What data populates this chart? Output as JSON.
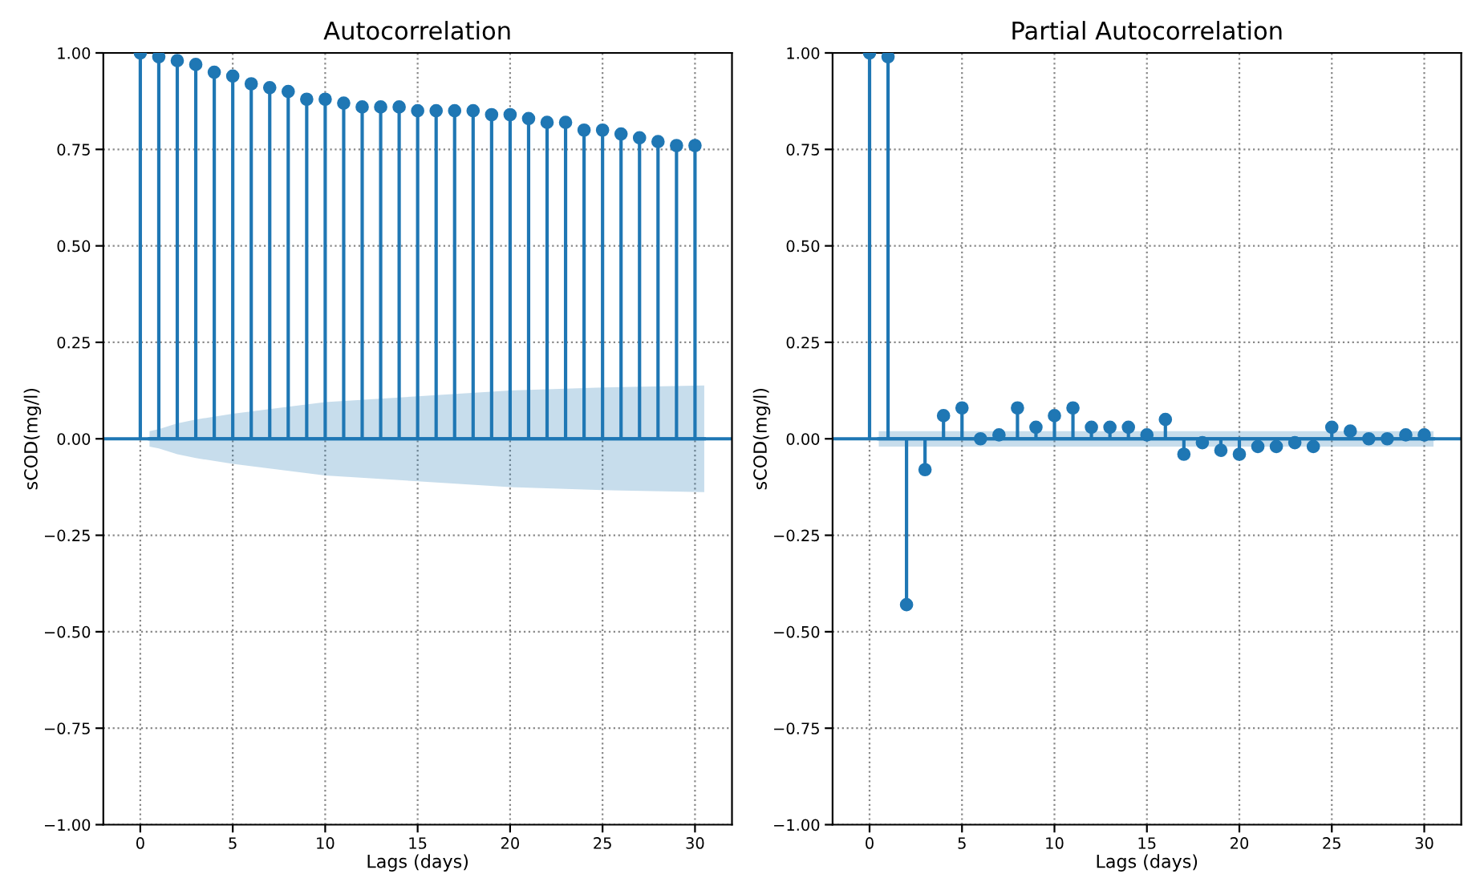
{
  "chart_data": [
    {
      "type": "lollipop",
      "title": "Autocorrelation",
      "xlabel": "Lags (days)",
      "ylabel": "sCOD(mg/l)",
      "xlim": [
        -2,
        32
      ],
      "xticks": [
        0,
        5,
        10,
        15,
        20,
        25,
        30
      ],
      "ylim": [
        -1,
        1
      ],
      "yticks": [
        {
          "value": -1,
          "label": "−1.00"
        },
        {
          "value": -0.75,
          "label": "−0.75"
        },
        {
          "value": -0.5,
          "label": "−0.50"
        },
        {
          "value": -0.25,
          "label": "−0.25"
        },
        {
          "value": 0,
          "label": "0.00"
        },
        {
          "value": 0.25,
          "label": "0.25"
        },
        {
          "value": 0.5,
          "label": "0.50"
        },
        {
          "value": 0.75,
          "label": "0.75"
        },
        {
          "value": 1,
          "label": "1.00"
        }
      ],
      "grid": true,
      "ref_lines": [
        {
          "axis": "y",
          "value": 0,
          "color": "#1f77b4"
        }
      ],
      "series": [
        {
          "color": "#1f77b4",
          "marker": "circle",
          "x": [
            0,
            1,
            2,
            3,
            4,
            5,
            6,
            7,
            8,
            9,
            10,
            11,
            12,
            13,
            14,
            15,
            16,
            17,
            18,
            19,
            20,
            21,
            22,
            23,
            24,
            25,
            26,
            27,
            28,
            29,
            30
          ],
          "values": [
            1.0,
            0.99,
            0.98,
            0.97,
            0.95,
            0.94,
            0.92,
            0.91,
            0.9,
            0.88,
            0.88,
            0.87,
            0.86,
            0.86,
            0.86,
            0.85,
            0.85,
            0.85,
            0.85,
            0.84,
            0.84,
            0.83,
            0.82,
            0.82,
            0.8,
            0.8,
            0.79,
            0.78,
            0.77,
            0.76,
            0.76
          ]
        },
        {
          "type": "line",
          "color": "#1f77b4",
          "x": [
            0.5,
            1,
            2,
            3,
            5,
            10,
            15,
            20,
            25,
            30.5
          ],
          "values": [
            0,
            0,
            0,
            0,
            0,
            0,
            0,
            0,
            0,
            0
          ],
          "lower": [
            -0.02,
            -0.025,
            -0.04,
            -0.05,
            -0.065,
            -0.095,
            -0.11,
            -0.125,
            -0.133,
            -0.138
          ],
          "upper": [
            0.02,
            0.025,
            0.04,
            0.05,
            0.065,
            0.095,
            0.11,
            0.125,
            0.133,
            0.138
          ]
        }
      ]
    },
    {
      "type": "lollipop",
      "title": "Partial Autocorrelation",
      "xlabel": "Lags (days)",
      "ylabel": "sCOD(mg/l)",
      "xlim": [
        -2,
        32
      ],
      "xticks": [
        0,
        5,
        10,
        15,
        20,
        25,
        30
      ],
      "ylim": [
        -1,
        1
      ],
      "yticks": [
        {
          "value": -1,
          "label": "−1.00"
        },
        {
          "value": -0.75,
          "label": "−0.75"
        },
        {
          "value": -0.5,
          "label": "−0.50"
        },
        {
          "value": -0.25,
          "label": "−0.25"
        },
        {
          "value": 0,
          "label": "0.00"
        },
        {
          "value": 0.25,
          "label": "0.25"
        },
        {
          "value": 0.5,
          "label": "0.50"
        },
        {
          "value": 0.75,
          "label": "0.75"
        },
        {
          "value": 1,
          "label": "1.00"
        }
      ],
      "grid": true,
      "ref_lines": [
        {
          "axis": "y",
          "value": 0,
          "color": "#1f77b4"
        }
      ],
      "series": [
        {
          "color": "#1f77b4",
          "marker": "circle",
          "x": [
            0,
            1,
            2,
            3,
            4,
            5,
            6,
            7,
            8,
            9,
            10,
            11,
            12,
            13,
            14,
            15,
            16,
            17,
            18,
            19,
            20,
            21,
            22,
            23,
            24,
            25,
            26,
            27,
            28,
            29,
            30
          ],
          "values": [
            1.0,
            0.99,
            -0.43,
            -0.08,
            0.06,
            0.08,
            0.0,
            0.01,
            0.08,
            0.03,
            0.06,
            0.08,
            0.03,
            0.03,
            0.03,
            0.01,
            0.05,
            -0.04,
            -0.01,
            -0.03,
            -0.04,
            -0.02,
            -0.02,
            -0.01,
            -0.02,
            0.03,
            0.02,
            0.0,
            0.0,
            0.01,
            0.01
          ]
        },
        {
          "type": "line",
          "color": "#1f77b4",
          "x": [
            0.5,
            30.5
          ],
          "values": [
            0,
            0
          ],
          "lower": [
            -0.02,
            -0.02
          ],
          "upper": [
            0.02,
            0.02
          ]
        }
      ]
    }
  ]
}
